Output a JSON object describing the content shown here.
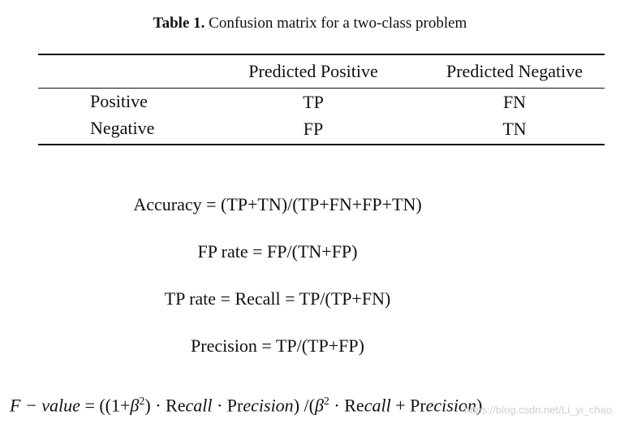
{
  "caption": {
    "label": "Table 1.",
    "text": "Confusion matrix for a two-class problem"
  },
  "table": {
    "headers": [
      "",
      "Predicted Positive",
      "Predicted Negative"
    ],
    "rows": [
      {
        "label": "Positive",
        "cells": [
          "TP",
          "FN"
        ]
      },
      {
        "label": "Negative",
        "cells": [
          "FP",
          "TN"
        ]
      }
    ]
  },
  "formulas": [
    "Accuracy = (TP+TN)/(TP+FN+FP+TN)",
    "FP rate = FP/(TN+FP)",
    "TP rate = Recall = TP/(TP+FN)",
    "Precision = TP/(TP+FP)"
  ],
  "fvalue": {
    "lhs": "F − value",
    "eq": " = ((1+",
    "beta": "β",
    "exp": "2",
    "mid1": ") · Re",
    "call": "call",
    "mid2": " · Pr",
    "ecision": "ecision",
    "mid3": ") /(",
    "mid4": " · Re",
    "mid5": " + Pr",
    "end": ")"
  },
  "watermark": "https://blog.csdn.net/Li_yi_chao"
}
